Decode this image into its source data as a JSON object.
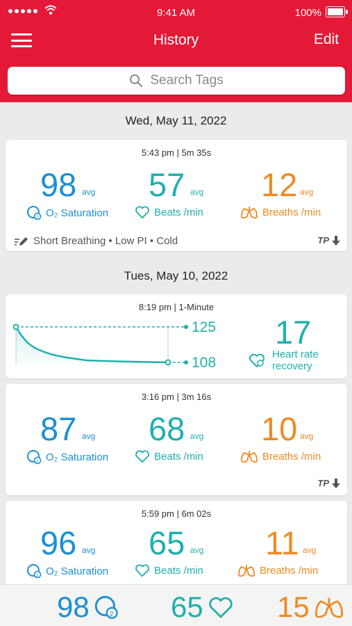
{
  "status_bar": {
    "time": "9:41 AM",
    "battery": "100%"
  },
  "header": {
    "title": "History",
    "edit_label": "Edit"
  },
  "search": {
    "placeholder": "Search Tags"
  },
  "labels": {
    "avg": "avg",
    "o2": "O₂ Saturation",
    "beats": "Beats /min",
    "breaths": "Breaths /min"
  },
  "sections": [
    {
      "date": "Wed, May 11, 2022"
    },
    {
      "date": "Tues, May 10, 2022"
    }
  ],
  "cards": {
    "c1": {
      "time": "5:43 pm | 5m 35s",
      "o2": "98",
      "pulse": "57",
      "resp": "12",
      "tags": "Short Breathing • Low PI • Cold",
      "export": "TP"
    },
    "c2": {
      "time": "8:19 pm | 1-Minute",
      "high": "125",
      "low": "108",
      "recovery": "17",
      "recovery_label_1": "Heart rate",
      "recovery_label_2": "recovery"
    },
    "c3": {
      "time": "3:16 pm | 3m 16s",
      "o2": "87",
      "pulse": "68",
      "resp": "10",
      "export": "TP"
    },
    "c4": {
      "time": "5:59 pm | 6m 02s",
      "o2": "96",
      "pulse": "65",
      "resp": "11"
    }
  },
  "live": {
    "o2": "98",
    "pulse": "65",
    "resp": "15"
  },
  "colors": {
    "header": "#e41937",
    "o2": "#1b8fd4",
    "pulse": "#1fb0ad",
    "resp": "#f08a21"
  }
}
